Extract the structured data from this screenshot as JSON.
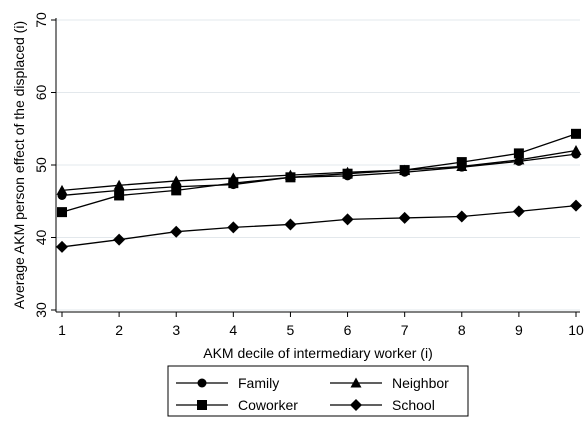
{
  "chart_data": {
    "type": "line",
    "title": "",
    "xlabel": "AKM decile of intermediary worker (i)",
    "ylabel": "Average AKM person effect of the displaced (i)",
    "x": [
      1,
      2,
      3,
      4,
      5,
      6,
      7,
      8,
      9,
      10
    ],
    "xlim": [
      1,
      10
    ],
    "ylim": [
      30,
      70
    ],
    "xticks": [
      "1",
      "2",
      "3",
      "4",
      "5",
      "6",
      "7",
      "8",
      "9",
      "10"
    ],
    "yticks": [
      "30",
      "40",
      "50",
      "60",
      "70"
    ],
    "grid": true,
    "legend_position": "bottom",
    "series": [
      {
        "name": "Family",
        "marker": "circle",
        "values": [
          45.8,
          46.5,
          47.0,
          47.3,
          48.3,
          48.5,
          49.0,
          49.7,
          50.5,
          51.5
        ]
      },
      {
        "name": "Neighbor",
        "marker": "triangle",
        "values": [
          46.5,
          47.2,
          47.8,
          48.2,
          48.6,
          49.0,
          49.3,
          49.8,
          50.7,
          52.0
        ]
      },
      {
        "name": "Coworker",
        "marker": "square",
        "values": [
          43.5,
          45.8,
          46.5,
          47.5,
          48.3,
          48.8,
          49.3,
          50.4,
          51.6,
          54.3
        ]
      },
      {
        "name": "School",
        "marker": "diamond",
        "values": [
          38.7,
          39.7,
          40.8,
          41.4,
          41.8,
          42.5,
          42.7,
          42.9,
          43.6,
          44.4
        ]
      }
    ]
  }
}
